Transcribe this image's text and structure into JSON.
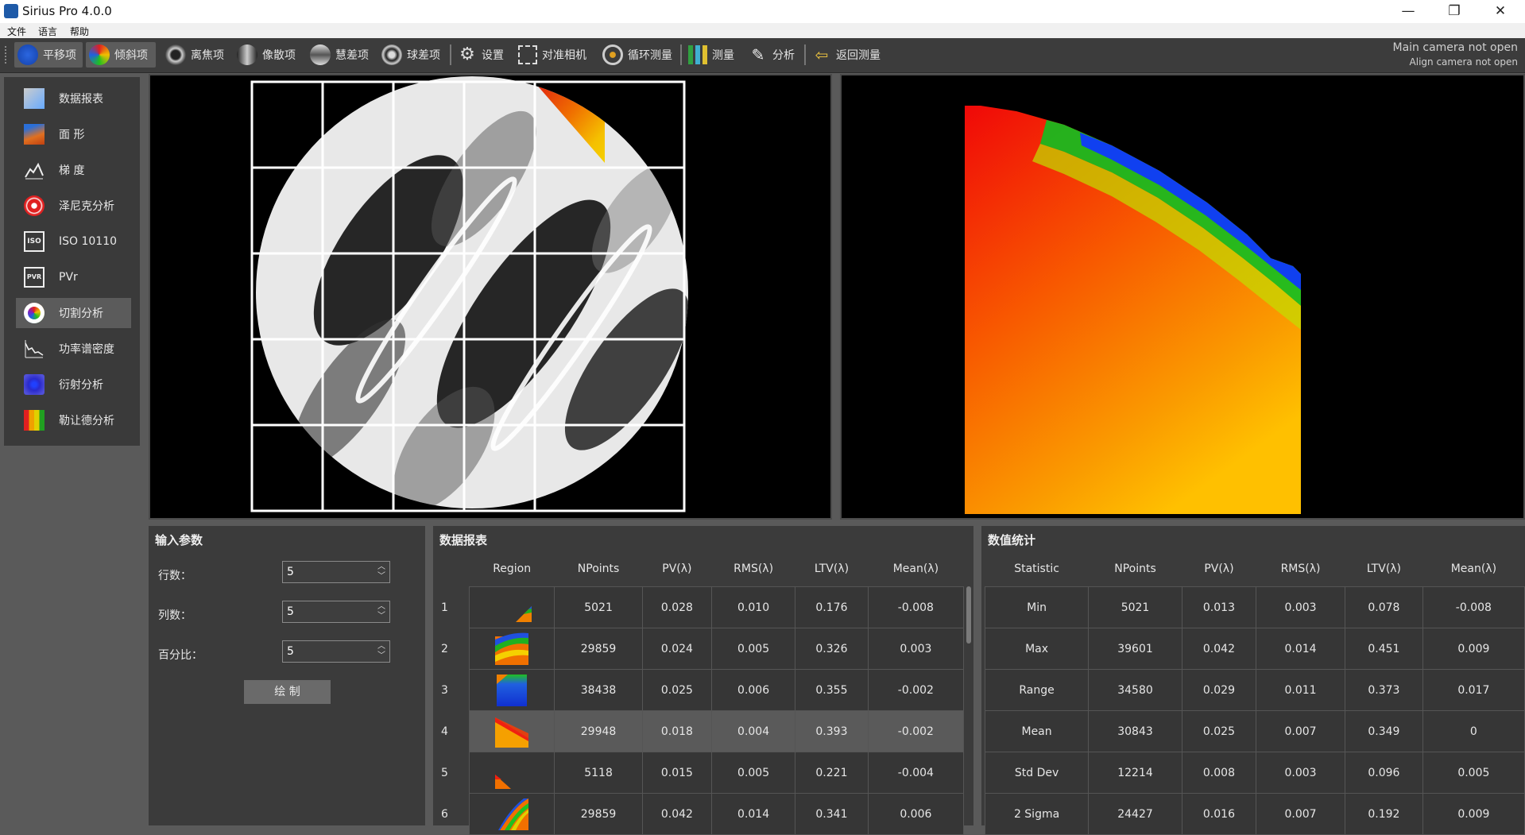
{
  "window": {
    "title": "Sirius Pro 4.0.0",
    "minimize": "—",
    "restore": "❐",
    "close": "✕"
  },
  "menu": [
    "文件",
    "语言",
    "帮助"
  ],
  "toolbar": {
    "items": [
      "平移项",
      "倾斜项",
      "离焦项",
      "像散项",
      "慧差项",
      "球差项",
      "设置",
      "对准相机",
      "循环测量",
      "测量",
      "分析",
      "返回测量"
    ],
    "status_main": "Main camera not open",
    "status_align": "Align camera not open"
  },
  "sidemenu": {
    "items": [
      "数据报表",
      "面 形",
      "梯 度",
      "泽尼克分析",
      "ISO 10110",
      "PVr",
      "切割分析",
      "功率谱密度",
      "衍射分析",
      "勒让德分析"
    ],
    "icon_names": [
      "report-icon",
      "surface-icon",
      "gradient-icon",
      "zernike-icon",
      "iso-icon",
      "pvr-icon",
      "cut-analysis-icon",
      "psd-icon",
      "diffraction-icon",
      "legendre-icon"
    ],
    "active_index": 6
  },
  "input_params": {
    "title": "输入参数",
    "rows_label": "行数：",
    "rows_value": "5",
    "cols_label": "列数：",
    "cols_value": "5",
    "percent_label": "百分比：",
    "percent_value": "5",
    "draw_button": "绘 制"
  },
  "data_report": {
    "title": "数据报表",
    "headers": [
      "Region",
      "NPoints",
      "PV(λ)",
      "RMS(λ)",
      "LTV(λ)",
      "Mean(λ)"
    ],
    "rows": [
      {
        "n": "1",
        "npoints": "5021",
        "pv": "0.028",
        "rms": "0.010",
        "ltv": "0.176",
        "mean": "-0.008"
      },
      {
        "n": "2",
        "npoints": "29859",
        "pv": "0.024",
        "rms": "0.005",
        "ltv": "0.326",
        "mean": "0.003"
      },
      {
        "n": "3",
        "npoints": "38438",
        "pv": "0.025",
        "rms": "0.006",
        "ltv": "0.355",
        "mean": "-0.002"
      },
      {
        "n": "4",
        "npoints": "29948",
        "pv": "0.018",
        "rms": "0.004",
        "ltv": "0.393",
        "mean": "-0.002"
      },
      {
        "n": "5",
        "npoints": "5118",
        "pv": "0.015",
        "rms": "0.005",
        "ltv": "0.221",
        "mean": "-0.004"
      },
      {
        "n": "6",
        "npoints": "29859",
        "pv": "0.042",
        "rms": "0.014",
        "ltv": "0.341",
        "mean": "0.006"
      }
    ],
    "selected_row": 4
  },
  "statistics": {
    "title": "数值统计",
    "headers": [
      "Statistic",
      "NPoints",
      "PV(λ)",
      "RMS(λ)",
      "LTV(λ)",
      "Mean(λ)"
    ],
    "rows": [
      {
        "stat": "Min",
        "npoints": "5021",
        "pv": "0.013",
        "rms": "0.003",
        "ltv": "0.078",
        "mean": "-0.008"
      },
      {
        "stat": "Max",
        "npoints": "39601",
        "pv": "0.042",
        "rms": "0.014",
        "ltv": "0.451",
        "mean": "0.009"
      },
      {
        "stat": "Range",
        "npoints": "34580",
        "pv": "0.029",
        "rms": "0.011",
        "ltv": "0.373",
        "mean": "0.017"
      },
      {
        "stat": "Mean",
        "npoints": "30843",
        "pv": "0.025",
        "rms": "0.007",
        "ltv": "0.349",
        "mean": "0"
      },
      {
        "stat": "Std Dev",
        "npoints": "12214",
        "pv": "0.008",
        "rms": "0.003",
        "ltv": "0.096",
        "mean": "0.005"
      },
      {
        "stat": "2 Sigma",
        "npoints": "24427",
        "pv": "0.016",
        "rms": "0.007",
        "ltv": "0.192",
        "mean": "0.009"
      }
    ]
  },
  "colors": {
    "accent_blue": "#1f56c4",
    "selected_gray": "#5b5b5b",
    "panel_bg": "#3b3b3b"
  }
}
